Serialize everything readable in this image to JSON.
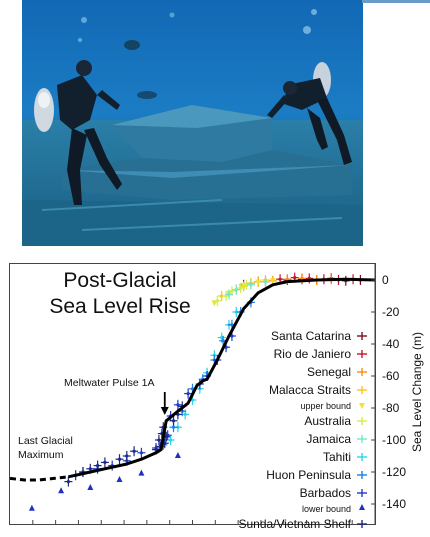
{
  "photo": {
    "subject": "scuba divers exploring a submerged stepped rock structure"
  },
  "chart_data": {
    "type": "scatter",
    "title_lines": [
      "Post-Glacial",
      "Sea Level Rise"
    ],
    "xlabel": "",
    "ylabel": "Sea Level Change (m)",
    "ylim": [
      -145,
      5
    ],
    "yticks": [
      0,
      -20,
      -40,
      -60,
      -80,
      -100,
      -120,
      -140
    ],
    "y_axis_side": "right",
    "grid": false,
    "legend_position": "right",
    "series": [
      {
        "name": "Santa Catarina",
        "color": "#7a1020",
        "marker": "cross",
        "points": [
          [
            -9000,
            -3
          ],
          [
            -8000,
            -1
          ],
          [
            -6000,
            0
          ],
          [
            -5000,
            0.5
          ],
          [
            -4000,
            0
          ],
          [
            -3000,
            1
          ],
          [
            -2000,
            -0.5
          ],
          [
            -1000,
            0
          ]
        ]
      },
      {
        "name": "Rio de Janiero",
        "color": "#c0182a",
        "marker": "cross",
        "points": [
          [
            -7500,
            -1
          ],
          [
            -6500,
            0.5
          ],
          [
            -5500,
            1.5
          ],
          [
            -4500,
            1
          ],
          [
            -3500,
            0.5
          ],
          [
            -2500,
            0
          ],
          [
            -1500,
            0.5
          ]
        ]
      },
      {
        "name": "Senegal",
        "color": "#ff8a10",
        "marker": "cross",
        "points": [
          [
            -8500,
            -2
          ],
          [
            -7000,
            -0.5
          ],
          [
            -6000,
            0.5
          ],
          [
            -5000,
            1
          ],
          [
            -4000,
            0
          ],
          [
            -3000,
            0.5
          ]
        ]
      },
      {
        "name": "Malacca Straits",
        "color": "#ffc414",
        "marker": "cross",
        "points": [
          [
            -10500,
            -10
          ],
          [
            -9500,
            -6
          ],
          [
            -9000,
            -4
          ],
          [
            -8500,
            -2
          ],
          [
            -8000,
            -1
          ],
          [
            -7500,
            0
          ]
        ]
      },
      {
        "name": "upper bound",
        "color": "#f4e22e",
        "marker": "arrow-down",
        "points": [
          [
            -11000,
            -14
          ],
          [
            -10000,
            -8
          ],
          [
            -9000,
            -3
          ],
          [
            -8000,
            -1
          ],
          [
            -7000,
            0
          ]
        ]
      },
      {
        "name": "Australia",
        "color": "#cdf04a",
        "marker": "cross",
        "points": [
          [
            -10800,
            -13
          ],
          [
            -10200,
            -10
          ],
          [
            -9800,
            -7
          ],
          [
            -9200,
            -5
          ],
          [
            -8800,
            -3
          ]
        ]
      },
      {
        "name": "Jamaica",
        "color": "#6eeac8",
        "marker": "cross",
        "points": [
          [
            -10000,
            -9
          ],
          [
            -9500,
            -6
          ],
          [
            -8500,
            -3
          ],
          [
            -7500,
            -1
          ]
        ]
      },
      {
        "name": "Tahiti",
        "color": "#2ad2ec",
        "marker": "cross",
        "points": [
          [
            -14000,
            -100
          ],
          [
            -13500,
            -92
          ],
          [
            -13000,
            -84
          ],
          [
            -12500,
            -75
          ],
          [
            -12000,
            -68
          ],
          [
            -11500,
            -58
          ],
          [
            -11000,
            -47
          ],
          [
            -10500,
            -36
          ],
          [
            -10000,
            -28
          ],
          [
            -9500,
            -20
          ]
        ]
      },
      {
        "name": "Huon Peninsula",
        "color": "#1880e8",
        "marker": "cross",
        "points": [
          [
            -14500,
            -103
          ],
          [
            -13800,
            -92
          ],
          [
            -13200,
            -82
          ],
          [
            -12500,
            -68
          ],
          [
            -11800,
            -62
          ],
          [
            -11000,
            -50
          ],
          [
            -10400,
            -38
          ],
          [
            -9800,
            -28
          ],
          [
            -9200,
            -20
          ],
          [
            -8500,
            -14
          ]
        ]
      },
      {
        "name": "Barbados",
        "color": "#1e3cc8",
        "marker": "cross",
        "points": [
          [
            -20000,
            -120
          ],
          [
            -19000,
            -118
          ],
          [
            -18000,
            -116
          ],
          [
            -17000,
            -113
          ],
          [
            -16000,
            -108
          ],
          [
            -15000,
            -105
          ],
          [
            -14500,
            -100
          ],
          [
            -14200,
            -97
          ],
          [
            -14000,
            -85
          ],
          [
            -13500,
            -78
          ],
          [
            -12800,
            -71
          ],
          [
            -12000,
            -65
          ],
          [
            -11500,
            -60
          ],
          [
            -10800,
            -50
          ],
          [
            -10200,
            -42
          ],
          [
            -9800,
            -35
          ]
        ]
      },
      {
        "name": "lower bound",
        "color": "#2030c0",
        "marker": "arrow-up",
        "points": [
          [
            -23500,
            -143
          ],
          [
            -21500,
            -132
          ],
          [
            -19500,
            -130
          ],
          [
            -17500,
            -125
          ],
          [
            -16000,
            -121
          ],
          [
            -13500,
            -110
          ]
        ]
      },
      {
        "name": "Sunda/Vietnam Shelf",
        "color": "#1b2a86",
        "marker": "cross",
        "points": [
          [
            -21000,
            -126
          ],
          [
            -20500,
            -122
          ],
          [
            -20000,
            -120
          ],
          [
            -19500,
            -118
          ],
          [
            -19000,
            -116
          ],
          [
            -18500,
            -114
          ],
          [
            -17500,
            -112
          ],
          [
            -17000,
            -110
          ],
          [
            -16500,
            -107
          ],
          [
            -15000,
            -106
          ],
          [
            -14800,
            -100
          ],
          [
            -14600,
            -96
          ],
          [
            -14500,
            -92
          ],
          [
            -14400,
            -102
          ],
          [
            -14300,
            -98
          ],
          [
            -14700,
            -104
          ],
          [
            -13800,
            -88
          ],
          [
            -13500,
            -84
          ],
          [
            -13200,
            -79
          ]
        ]
      }
    ],
    "trend": {
      "x": [
        -25000,
        -24000,
        -23000,
        -22000,
        -21000,
        -20000,
        -19000,
        -18000,
        -17000,
        -16000,
        -15000,
        -14650,
        -14300,
        -13500,
        -12800,
        -12200,
        -11800,
        -11500,
        -10800,
        -10000,
        -9000,
        -8000,
        -7000,
        -6000,
        -4000,
        -2000,
        0
      ],
      "y": [
        -124,
        -125,
        -125,
        -124,
        -123,
        -121,
        -119,
        -117,
        -115,
        -112,
        -108,
        -106,
        -88,
        -82,
        -77,
        -66,
        -63,
        -62,
        -50,
        -35,
        -18,
        -8,
        -3,
        -1,
        0,
        0.5,
        0
      ]
    },
    "x_range": [
      -25000,
      0
    ],
    "annotations": [
      {
        "text": "Meltwater Pulse 1A",
        "points_to": [
          -14400,
          -90
        ]
      },
      {
        "text_lines": [
          "Last Glacial",
          "Maximum"
        ],
        "points_to": [
          -21000,
          -123
        ]
      }
    ]
  }
}
